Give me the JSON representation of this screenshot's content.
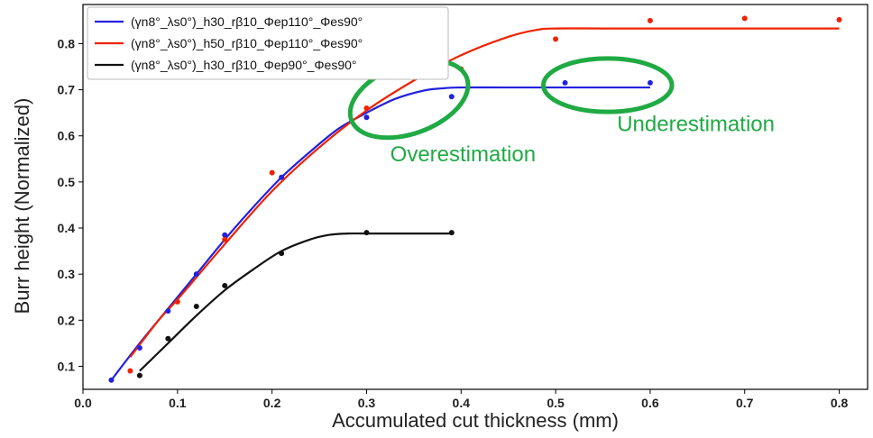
{
  "chart_data": {
    "type": "line",
    "xlabel": "Accumulated cut thickness (mm)",
    "ylabel": "Burr height (Normalized)",
    "xlim": [
      0.0,
      0.83
    ],
    "ylim": [
      0.05,
      0.885
    ],
    "xticks": [
      "0.0",
      "0.1",
      "0.2",
      "0.3",
      "0.4",
      "0.5",
      "0.6",
      "0.7",
      "0.8"
    ],
    "xtick_values": [
      0.0,
      0.1,
      0.2,
      0.3,
      0.4,
      0.5,
      0.6,
      0.7,
      0.8
    ],
    "yticks": [
      "0.1",
      "0.2",
      "0.3",
      "0.4",
      "0.5",
      "0.6",
      "0.7",
      "0.8"
    ],
    "ytick_values": [
      0.1,
      0.2,
      0.3,
      0.4,
      0.5,
      0.6,
      0.7,
      0.8
    ],
    "grid": false,
    "legend_position": "top-left",
    "series": [
      {
        "name": "(γn8°_λs0°)_h30_rβ10_Φep110°_Φes90°",
        "color": "#2222dd",
        "points": {
          "x": [
            0.03,
            0.06,
            0.09,
            0.12,
            0.15,
            0.21,
            0.3,
            0.39,
            0.51,
            0.6
          ],
          "y": [
            0.07,
            0.14,
            0.22,
            0.3,
            0.385,
            0.51,
            0.64,
            0.685,
            0.715,
            0.715
          ]
        },
        "curve": {
          "x": [
            0.03,
            0.06,
            0.09,
            0.12,
            0.15,
            0.18,
            0.21,
            0.24,
            0.27,
            0.3,
            0.33,
            0.36,
            0.38,
            0.4,
            0.45,
            0.5,
            0.55,
            0.6
          ],
          "y": [
            0.07,
            0.15,
            0.225,
            0.3,
            0.375,
            0.445,
            0.51,
            0.565,
            0.615,
            0.65,
            0.68,
            0.698,
            0.703,
            0.705,
            0.705,
            0.705,
            0.705,
            0.705
          ]
        }
      },
      {
        "name": "(γn8°_λs0°)_h50_rβ10_Φep110°_Φes90°",
        "color": "#ee2200",
        "points": {
          "x": [
            0.05,
            0.1,
            0.15,
            0.2,
            0.3,
            0.4,
            0.5,
            0.6,
            0.7,
            0.8
          ],
          "y": [
            0.09,
            0.24,
            0.375,
            0.52,
            0.66,
            0.745,
            0.81,
            0.85,
            0.855,
            0.852
          ]
        },
        "curve": {
          "x": [
            0.05,
            0.08,
            0.1,
            0.15,
            0.2,
            0.25,
            0.3,
            0.35,
            0.4,
            0.45,
            0.48,
            0.5,
            0.55,
            0.6,
            0.7,
            0.8
          ],
          "y": [
            0.12,
            0.2,
            0.245,
            0.365,
            0.48,
            0.575,
            0.655,
            0.72,
            0.775,
            0.815,
            0.83,
            0.833,
            0.833,
            0.833,
            0.833,
            0.833
          ]
        }
      },
      {
        "name": "(γn8°_λs0°)_h30_rβ10_Φep90°_Φes90°",
        "color": "#111111",
        "points": {
          "x": [
            0.06,
            0.09,
            0.12,
            0.15,
            0.21,
            0.3,
            0.39
          ],
          "y": [
            0.08,
            0.16,
            0.23,
            0.275,
            0.345,
            0.39,
            0.39
          ]
        },
        "curve": {
          "x": [
            0.06,
            0.09,
            0.12,
            0.15,
            0.18,
            0.21,
            0.24,
            0.26,
            0.28,
            0.3,
            0.35,
            0.39
          ],
          "y": [
            0.09,
            0.15,
            0.21,
            0.265,
            0.31,
            0.35,
            0.375,
            0.385,
            0.388,
            0.388,
            0.388,
            0.388
          ]
        }
      }
    ],
    "annotations": [
      {
        "text": "Overestimation",
        "color": "#1faa44",
        "x": 0.325,
        "y": 0.545
      },
      {
        "text": "Underestimation",
        "color": "#1faa44",
        "x": 0.565,
        "y": 0.61
      }
    ],
    "ellipses": [
      {
        "name": "overestimation-ellipse",
        "color": "#1faa44",
        "cx": 0.345,
        "cy": 0.68,
        "rx": 0.065,
        "ry": 0.075,
        "rotate": -20
      },
      {
        "name": "underestimation-ellipse",
        "color": "#1faa44",
        "cx": 0.555,
        "cy": 0.71,
        "rx": 0.068,
        "ry": 0.058,
        "rotate": 0
      }
    ]
  }
}
